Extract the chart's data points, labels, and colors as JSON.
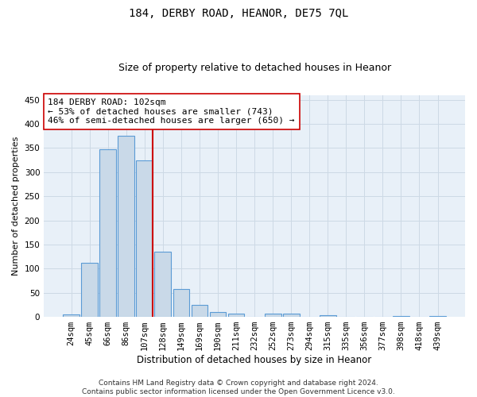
{
  "title": "184, DERBY ROAD, HEANOR, DE75 7QL",
  "subtitle": "Size of property relative to detached houses in Heanor",
  "xlabel": "Distribution of detached houses by size in Heanor",
  "ylabel": "Number of detached properties",
  "categories": [
    "24sqm",
    "45sqm",
    "66sqm",
    "86sqm",
    "107sqm",
    "128sqm",
    "149sqm",
    "169sqm",
    "190sqm",
    "211sqm",
    "232sqm",
    "252sqm",
    "273sqm",
    "294sqm",
    "315sqm",
    "335sqm",
    "356sqm",
    "377sqm",
    "398sqm",
    "418sqm",
    "439sqm"
  ],
  "values": [
    5,
    112,
    347,
    375,
    325,
    135,
    57,
    25,
    10,
    6,
    0,
    7,
    7,
    0,
    4,
    0,
    0,
    0,
    2,
    0,
    2
  ],
  "bar_color": "#c9d9e8",
  "bar_edge_color": "#5b9bd5",
  "vline_index": 4,
  "vline_color": "#cc0000",
  "annotation_line1": "184 DERBY ROAD: 102sqm",
  "annotation_line2": "← 53% of detached houses are smaller (743)",
  "annotation_line3": "46% of semi-detached houses are larger (650) →",
  "annotation_box_color": "#ffffff",
  "annotation_box_edge": "#cc0000",
  "ylim": [
    0,
    460
  ],
  "yticks": [
    0,
    50,
    100,
    150,
    200,
    250,
    300,
    350,
    400,
    450
  ],
  "grid_color": "#cdd9e5",
  "bg_color": "#e8f0f8",
  "footer": "Contains HM Land Registry data © Crown copyright and database right 2024.\nContains public sector information licensed under the Open Government Licence v3.0.",
  "title_fontsize": 10,
  "subtitle_fontsize": 9,
  "xlabel_fontsize": 8.5,
  "ylabel_fontsize": 8,
  "tick_fontsize": 7.5,
  "annotation_fontsize": 8,
  "footer_fontsize": 6.5
}
